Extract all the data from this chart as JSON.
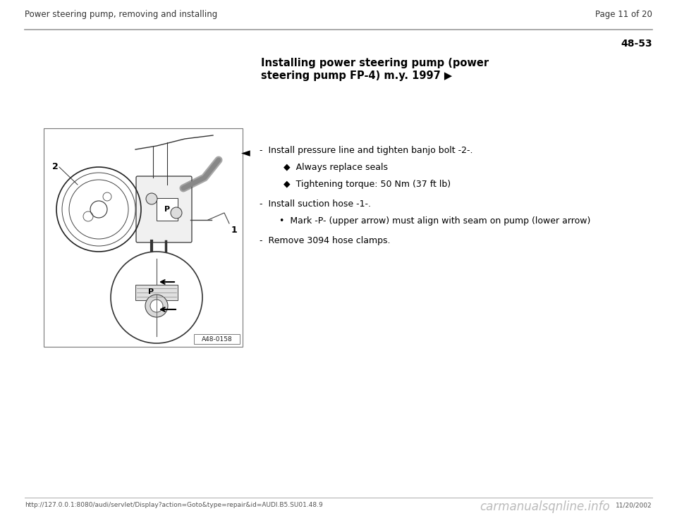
{
  "bg_color": "#ffffff",
  "header_left": "Power steering pump, removing and installing",
  "header_right": "Page 11 of 20",
  "section_number": "48-53",
  "section_title_line1": "Installing power steering pump (power",
  "section_title_line2": "steering pump FP-4) m.y. 1997 ▶",
  "instructions": [
    {
      "type": "dash",
      "text": "Install pressure line and tighten banjo bolt -2-.",
      "sub_items": [
        {
          "type": "diamond",
          "text": "Always replace seals"
        },
        {
          "type": "diamond",
          "text": "Tightening torque: 50 Nm (37 ft lb)"
        }
      ]
    },
    {
      "type": "dash",
      "text": "Install suction hose -1-.",
      "sub_items": [
        {
          "type": "bullet",
          "text": "Mark -P- (upper arrow) must align with seam on pump (lower arrow)"
        }
      ]
    },
    {
      "type": "dash",
      "text": "Remove 3094 hose clamps.",
      "sub_items": []
    }
  ],
  "image_label": "A48-0158",
  "footer_url": "http://127.0.0.1:8080/audi/servlet/Display?action=Goto&type=repair&id=AUDI.B5.SU01.48.9",
  "footer_site": "carmanualsqnline.info",
  "footer_date": "11/20/2002",
  "header_line_color": "#aaaaaa",
  "text_color": "#000000",
  "font_size_header": 8.5,
  "font_size_section_num": 10,
  "font_size_title": 10.5,
  "font_size_body": 9,
  "font_size_footer": 6.5
}
